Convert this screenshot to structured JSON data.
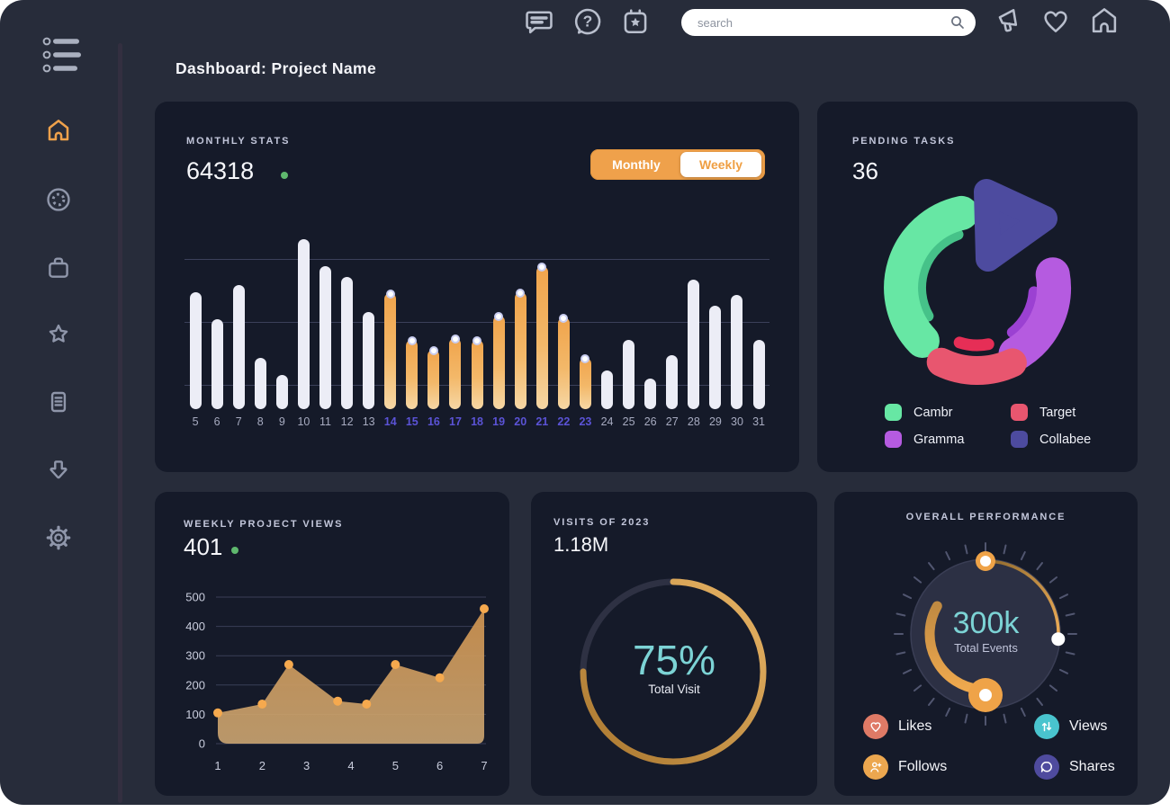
{
  "window": {
    "title": "Dashboard: Project Name"
  },
  "topbar": {
    "search_placeholder": "search",
    "icons_left": [
      "chat-icon",
      "help-icon",
      "calendar-event-icon"
    ],
    "icons_right": [
      "megaphone-icon",
      "heart-icon",
      "home-icon"
    ]
  },
  "sidebar": {
    "icons": [
      "menu-icon",
      "home-icon",
      "activity-icon",
      "bag-icon",
      "star-icon",
      "notes-icon",
      "download-icon",
      "settings-icon"
    ],
    "active_item": "home-icon",
    "active_color": "#efa14b"
  },
  "cards": {
    "monthly_stats": {
      "title": "MONTHLY STATS",
      "value": "64318",
      "status_dot_color": "#5fb86e",
      "toggle": {
        "monthly_label": "Monthly",
        "weekly_label": "Weekly",
        "active": "Weekly"
      }
    },
    "pending_tasks": {
      "title": "PENDING TASKS",
      "value": "36"
    },
    "weekly_views": {
      "title": "WEEKLY PROJECT VIEWS",
      "value": "401",
      "status_dot_color": "#5fb86e"
    },
    "visits": {
      "title": "VISITS OF 2023",
      "value": "1.18M",
      "percent_label": "75%",
      "caption": "Total Visit"
    },
    "performance": {
      "title": "OVERALL PERFORMANCE",
      "value": "300k",
      "caption": "Total Events"
    }
  },
  "chart_data": [
    {
      "id": "monthly-stats-bars",
      "type": "bar",
      "title": "MONTHLY STATS",
      "categories": [
        "5",
        "6",
        "7",
        "8",
        "9",
        "10",
        "11",
        "12",
        "13",
        "14",
        "15",
        "16",
        "17",
        "18",
        "19",
        "20",
        "21",
        "22",
        "23",
        "24",
        "25",
        "26",
        "27",
        "28",
        "29",
        "30",
        "31"
      ],
      "values": [
        69,
        53,
        73,
        30,
        20,
        100,
        84,
        78,
        57,
        68,
        41,
        35,
        42,
        41,
        55,
        69,
        84,
        54,
        30,
        23,
        41,
        18,
        32,
        76,
        61,
        67,
        41
      ],
      "highlighted": [
        "14",
        "15",
        "16",
        "17",
        "18",
        "19",
        "20",
        "21",
        "22",
        "23"
      ],
      "ylim": [
        0,
        100
      ],
      "gridlines": 3,
      "bar_color": "#ecedf6",
      "highlight_color": "#f0a44c",
      "highlight_label_color": "#5b53d6"
    },
    {
      "id": "pending-tasks-donut",
      "type": "pie",
      "title": "PENDING TASKS",
      "total_label": "36",
      "segments": [
        {
          "label": "Cambr",
          "color": "#67e7a4",
          "shadow_color": "#46c289",
          "percent": 37,
          "start_deg": 226,
          "end_deg": 348
        },
        {
          "label": "Gramma",
          "color": "#b55be0",
          "shadow_color": "#9b41d2",
          "percent": 24,
          "start_deg": 80,
          "end_deg": 150
        },
        {
          "label": "Target",
          "color": "#e8566f",
          "shadow_color": "#e62e56",
          "percent": 15,
          "start_deg": 155,
          "end_deg": 206,
          "exploded": true
        },
        {
          "label": "Collabee",
          "color": "#4d4b9f",
          "percent": 24,
          "start_deg": 0,
          "end_deg": 72,
          "shape": "triangle"
        }
      ],
      "legend_order": [
        "Cambr",
        "Target",
        "Gramma",
        "Collabee"
      ]
    },
    {
      "id": "weekly-views-area",
      "type": "area",
      "title": "WEEKLY PROJECT VIEWS",
      "x": [
        1,
        2,
        2.6,
        3.7,
        4.35,
        5,
        6,
        7
      ],
      "y": [
        105,
        135,
        270,
        145,
        135,
        270,
        225,
        460
      ],
      "xticks": [
        "1",
        "2",
        "3",
        "4",
        "5",
        "6",
        "7"
      ],
      "yticks": [
        0,
        100,
        200,
        300,
        400,
        500
      ],
      "ylim": [
        0,
        500
      ],
      "point_color": "#f5a94e",
      "fill_top": "#c98f4e",
      "fill_bottom": "#cfa873"
    },
    {
      "id": "visits-ring",
      "type": "progress-ring",
      "title": "VISITS OF 2023",
      "percent": 75,
      "center_label": "75%",
      "caption": "Total Visit",
      "ring_colors": [
        "#a9772f",
        "#e8b465"
      ],
      "track_color": "#2e3143"
    },
    {
      "id": "performance-gauge",
      "type": "gauge",
      "title": "OVERALL PERFORMANCE",
      "center_label": "300k",
      "caption": "Total Events",
      "arcs": [
        {
          "name": "outer-progress",
          "from_deg": 0,
          "to_deg": 94,
          "width": 3.5
        },
        {
          "name": "inner-progress",
          "from_deg": 187,
          "to_deg": 300,
          "width": 11
        }
      ],
      "legend": [
        {
          "label": "Likes",
          "color": "#df7a66",
          "icon": "heart-icon"
        },
        {
          "label": "Views",
          "color": "#49c4ce",
          "icon": "arrows-up-down-icon"
        },
        {
          "label": "Follows",
          "color": "#eca74f",
          "icon": "person-plus-icon"
        },
        {
          "label": "Shares",
          "color": "#4f4b9e",
          "icon": "chat-bubble-icon"
        }
      ]
    }
  ]
}
